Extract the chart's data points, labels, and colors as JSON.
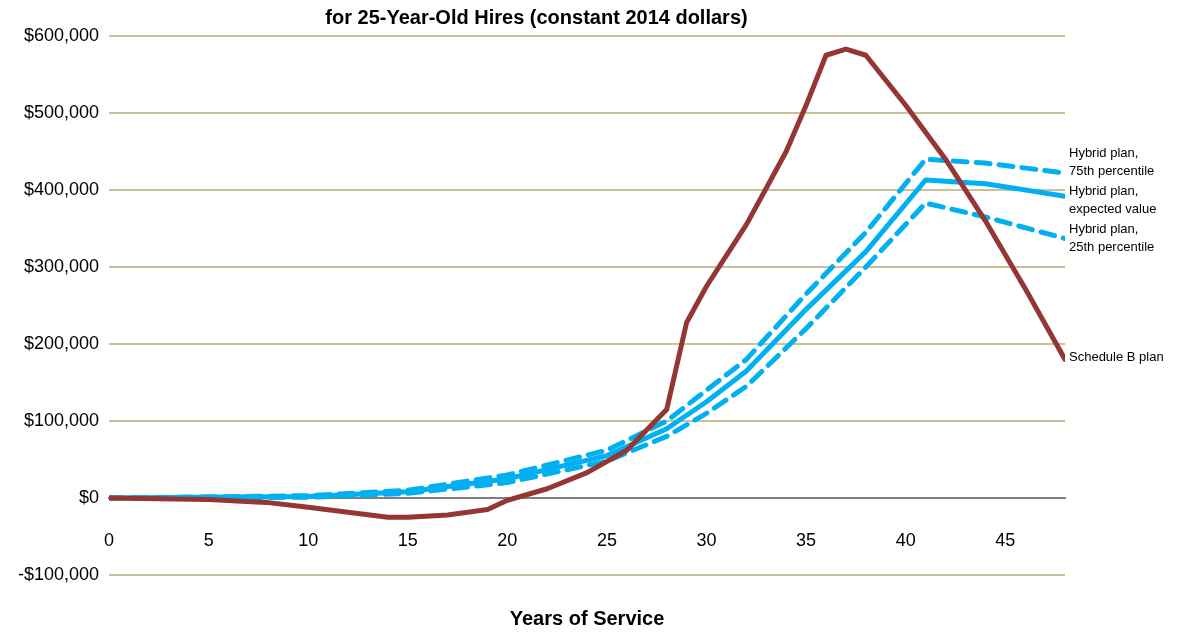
{
  "chart_data": {
    "type": "line",
    "title": "for 25-Year-Old Hires (constant 2014 dollars)",
    "xlabel": "Years of Service",
    "xlim": [
      0,
      48
    ],
    "xticks": [
      0,
      5,
      10,
      15,
      20,
      25,
      30,
      35,
      40,
      45
    ],
    "ylim": [
      -100000,
      600000
    ],
    "yticks": [
      {
        "value": -100000,
        "label": "-$100,000"
      },
      {
        "value": 0,
        "label": "$0"
      },
      {
        "value": 100000,
        "label": "$100,000"
      },
      {
        "value": 200000,
        "label": "$200,000"
      },
      {
        "value": 300000,
        "label": "$300,000"
      },
      {
        "value": 400000,
        "label": "$400,000"
      },
      {
        "value": 500000,
        "label": "$500,000"
      },
      {
        "value": 600000,
        "label": "$600,000"
      }
    ],
    "grid": "y",
    "legend": false,
    "marker": "none",
    "series": [
      {
        "name": "Schedule B plan",
        "color": "#943634",
        "line_style": "solid",
        "x": [
          0,
          5,
          8,
          10,
          14,
          15,
          17,
          19,
          20,
          22,
          24,
          26,
          28,
          29,
          30,
          32,
          34,
          35,
          36,
          37,
          38,
          40,
          42,
          44,
          46,
          48
        ],
        "values": [
          0,
          -2000,
          -6000,
          -12000,
          -25000,
          -25000,
          -22000,
          -15000,
          -3000,
          12000,
          33000,
          62000,
          115000,
          228000,
          275000,
          355000,
          450000,
          510000,
          575000,
          583000,
          575000,
          510000,
          440000,
          360000,
          272000,
          180000
        ]
      },
      {
        "name": "Hybrid plan, 75th percentile",
        "color": "#00b0f0",
        "line_style": "dashed",
        "x": [
          0,
          10,
          15,
          20,
          25,
          28,
          30,
          32,
          35,
          38,
          41,
          44,
          48
        ],
        "values": [
          0,
          3000,
          10000,
          30000,
          62000,
          100000,
          140000,
          180000,
          265000,
          345000,
          440000,
          435000,
          422000
        ]
      },
      {
        "name": "Hybrid plan, expected value",
        "color": "#00b0f0",
        "line_style": "solid",
        "x": [
          0,
          10,
          15,
          20,
          25,
          28,
          30,
          32,
          35,
          38,
          41,
          44,
          48
        ],
        "values": [
          0,
          2000,
          8000,
          25000,
          55000,
          90000,
          125000,
          165000,
          245000,
          320000,
          413000,
          408000,
          392000
        ]
      },
      {
        "name": "Hybrid plan, 25th percentile",
        "color": "#00b0f0",
        "line_style": "dashed",
        "x": [
          0,
          10,
          15,
          20,
          25,
          28,
          30,
          32,
          35,
          38,
          41,
          44,
          48
        ],
        "values": [
          0,
          1000,
          6000,
          20000,
          48000,
          80000,
          110000,
          145000,
          220000,
          300000,
          383000,
          365000,
          337000
        ]
      }
    ]
  }
}
